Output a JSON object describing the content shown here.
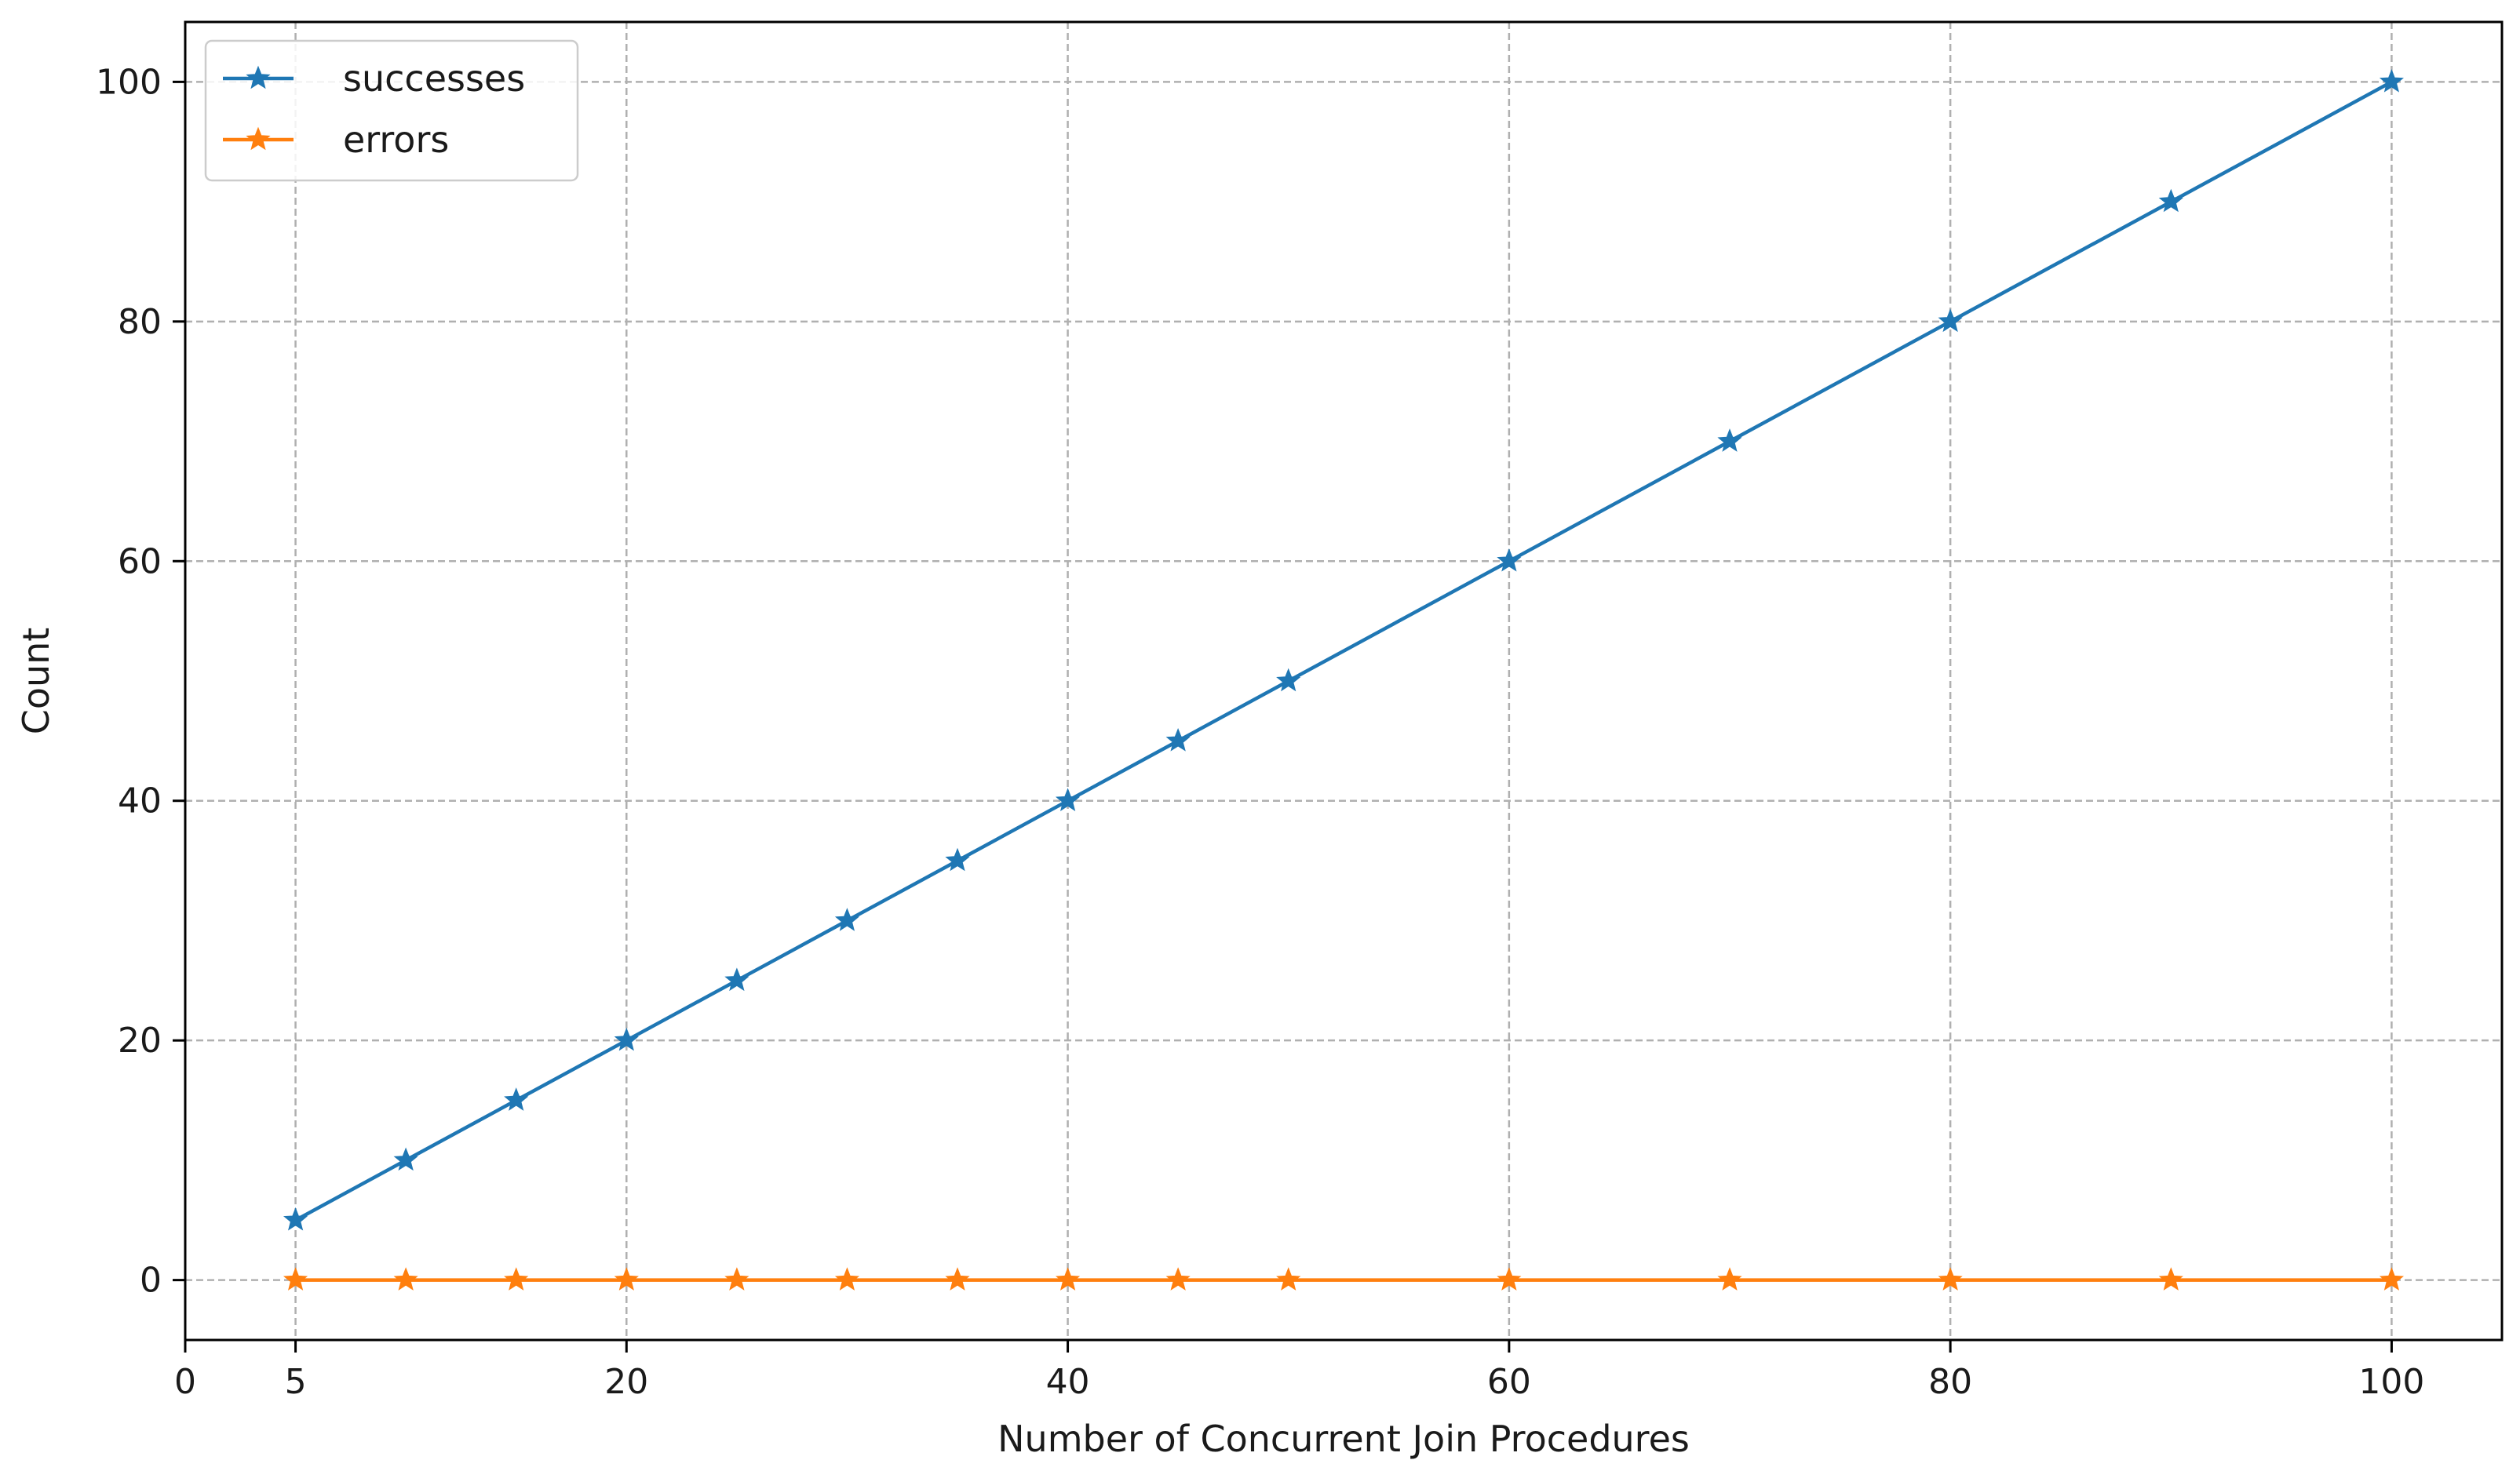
{
  "chart_data": {
    "type": "line",
    "xlabel": "Number of Concurrent Join Procedures",
    "ylabel": "Count",
    "xlim": [
      0,
      105
    ],
    "ylim": [
      -5,
      105
    ],
    "x_ticks": [
      0,
      5,
      20,
      40,
      60,
      80,
      100
    ],
    "y_ticks": [
      0,
      20,
      40,
      60,
      80,
      100
    ],
    "grid": true,
    "legend_position": "top-left",
    "marker": "star",
    "x": [
      5,
      10,
      15,
      20,
      25,
      30,
      35,
      40,
      45,
      50,
      60,
      70,
      80,
      90,
      100
    ],
    "series": [
      {
        "name": "successes",
        "color": "#1f77b4",
        "values": [
          5,
          10,
          15,
          20,
          25,
          30,
          35,
          40,
          45,
          50,
          60,
          70,
          80,
          90,
          100
        ]
      },
      {
        "name": "errors",
        "color": "#ff7f0e",
        "values": [
          0,
          0,
          0,
          0,
          0,
          0,
          0,
          0,
          0,
          0,
          0,
          0,
          0,
          0,
          0
        ]
      }
    ]
  }
}
